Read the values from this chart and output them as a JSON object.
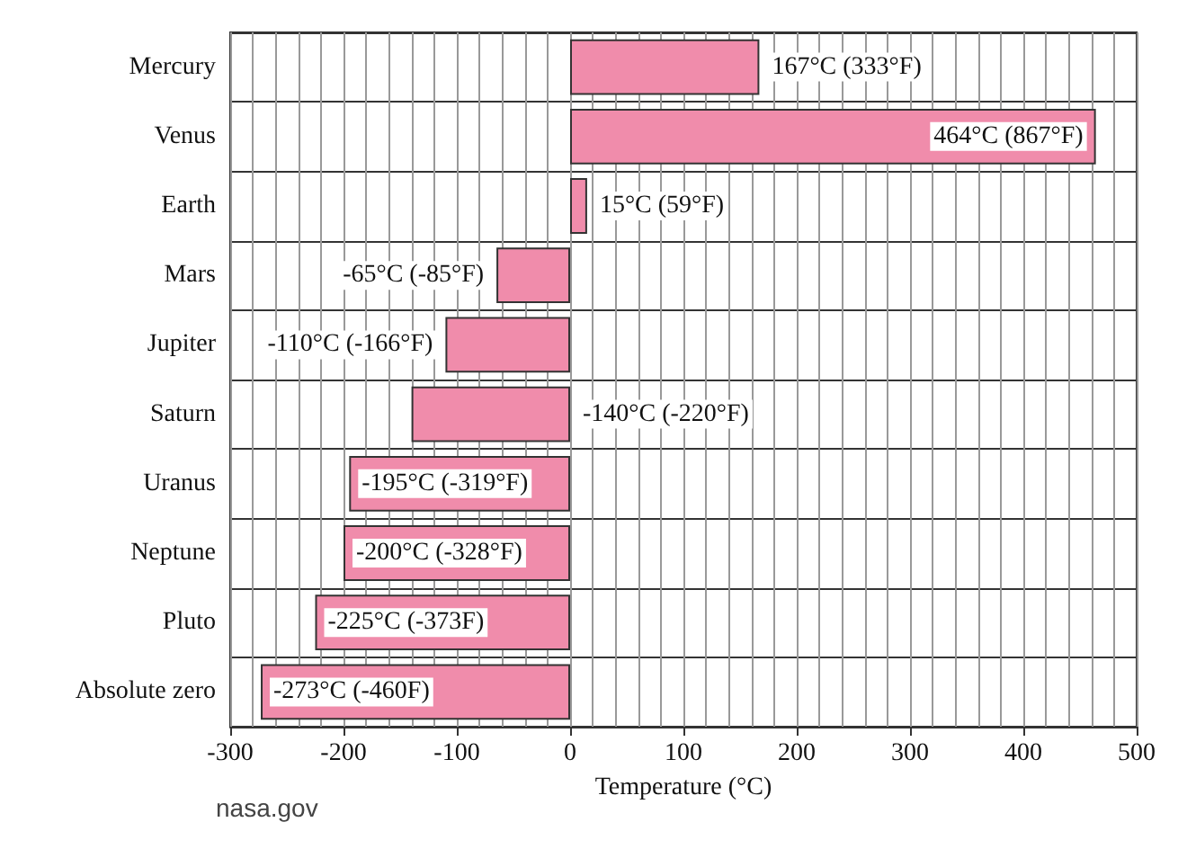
{
  "chart_data": {
    "type": "bar",
    "orientation": "horizontal",
    "xlabel": "Temperature (°C)",
    "annotations": [
      "nasa.gov"
    ],
    "categories": [
      "Mercury",
      "Venus",
      "Earth",
      "Mars",
      "Jupiter",
      "Saturn",
      "Uranus",
      "Neptune",
      "Pluto",
      "Absolute zero"
    ],
    "values": [
      167,
      464,
      15,
      -65,
      -110,
      -140,
      -195,
      -200,
      -225,
      -273
    ],
    "value_labels": [
      "167°C (333°F)",
      "464°C (867°F)",
      "15°C (59°F)",
      "-65°C (-85°F)",
      "-110°C (-166°F)",
      "-140°C (-220°F)",
      "-195°C (-319°F)",
      "-200°C (-328°F)",
      "-225°C (-373F)",
      "-273°C (-460F)"
    ],
    "color": "#f08cab",
    "xlim": [
      -300,
      500
    ],
    "xticks": [
      -300,
      {
        "value": -280,
        "label": null
      },
      {
        "value": -260,
        "label": null
      },
      {
        "value": -240,
        "label": null
      },
      {
        "value": -220,
        "label": null
      },
      -200,
      {
        "value": -180,
        "label": null
      },
      {
        "value": -160,
        "label": null
      },
      {
        "value": -140,
        "label": null
      },
      {
        "value": -120,
        "label": null
      },
      -100,
      {
        "value": -80,
        "label": null
      },
      {
        "value": -60,
        "label": null
      },
      {
        "value": -40,
        "label": null
      },
      {
        "value": -20,
        "label": null
      },
      0,
      {
        "value": 20,
        "label": null
      },
      {
        "value": 40,
        "label": null
      },
      {
        "value": 60,
        "label": null
      },
      {
        "value": 80,
        "label": null
      },
      100,
      {
        "value": 120,
        "label": null
      },
      {
        "value": 140,
        "label": null
      },
      {
        "value": 160,
        "label": null
      },
      {
        "value": 180,
        "label": null
      },
      200,
      {
        "value": 220,
        "label": null
      },
      {
        "value": 240,
        "label": null
      },
      {
        "value": 260,
        "label": null
      },
      {
        "value": 280,
        "label": null
      },
      300,
      {
        "value": 320,
        "label": null
      },
      {
        "value": 340,
        "label": null
      },
      {
        "value": 360,
        "label": null
      },
      {
        "value": 380,
        "label": null
      },
      400,
      {
        "value": 420,
        "label": null
      },
      {
        "value": 440,
        "label": null
      },
      {
        "value": 460,
        "label": null
      },
      {
        "value": 480,
        "label": null
      },
      500
    ],
    "grid": true
  }
}
